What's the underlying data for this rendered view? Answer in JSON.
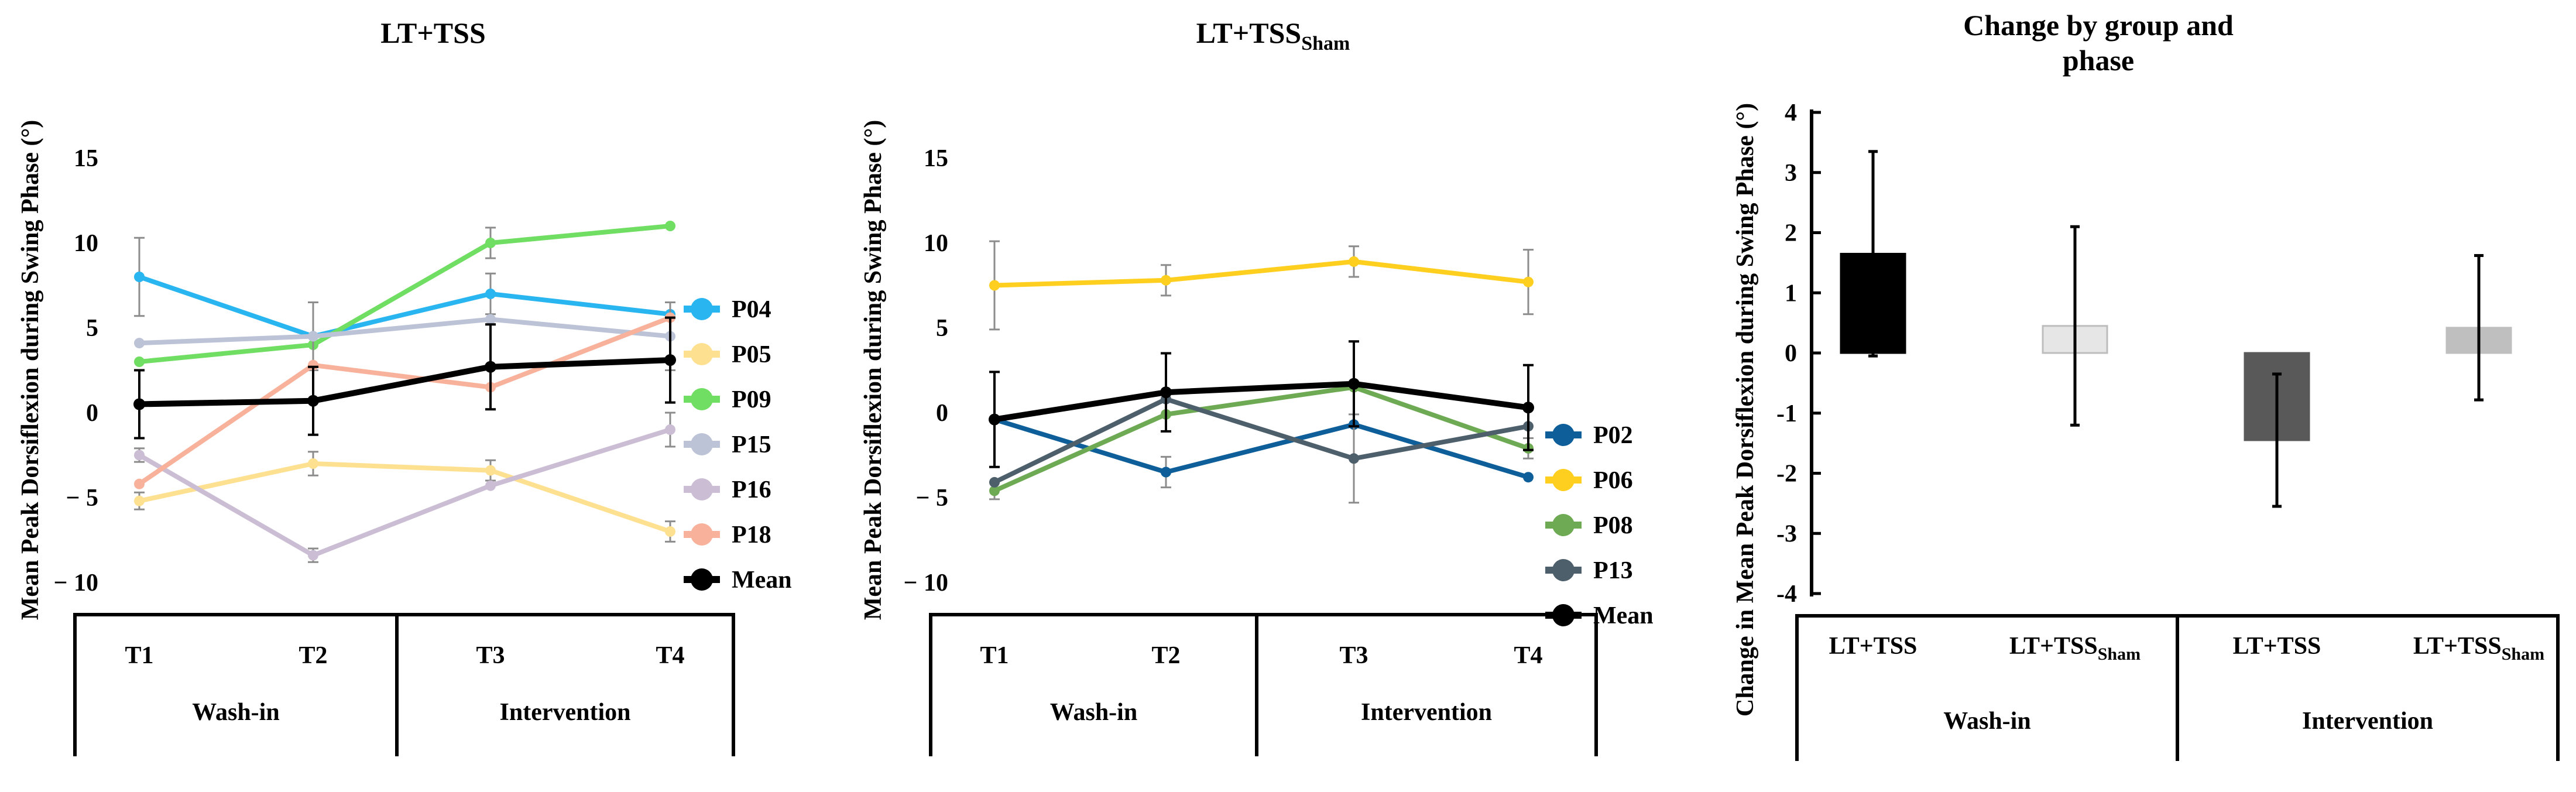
{
  "chart_data": [
    {
      "type": "line",
      "title_main": "LT+TSS",
      "title_sub": "",
      "ylabel": "Mean Peak Dorsiflexion during Swing Phase (°)",
      "ylim": [
        -10,
        15
      ],
      "yticks": [
        "15",
        "10",
        "5",
        "0",
        "− 5",
        "− 10"
      ],
      "ytick_values": [
        15,
        10,
        5,
        0,
        -5,
        -10
      ],
      "categories": [
        "T1",
        "T2",
        "T3",
        "T4"
      ],
      "phases": [
        "Wash-in",
        "Intervention"
      ],
      "series": [
        {
          "name": "P04",
          "color": "#29B5F0",
          "values": [
            8.0,
            4.5,
            7.0,
            5.8
          ],
          "errors": [
            2.3,
            null,
            1.2,
            null
          ]
        },
        {
          "name": "P05",
          "color": "#FDE090",
          "values": [
            -5.2,
            -3.0,
            -3.4,
            -7.0
          ],
          "errors": [
            0.5,
            0.7,
            0.6,
            0.6
          ]
        },
        {
          "name": "P09",
          "color": "#70DE62",
          "values": [
            3.0,
            4.0,
            10.0,
            11.0
          ],
          "errors": [
            null,
            null,
            0.9,
            null
          ]
        },
        {
          "name": "P15",
          "color": "#BCC3D6",
          "values": [
            4.1,
            4.5,
            5.5,
            4.5
          ],
          "errors": [
            null,
            2.0,
            null,
            2.0
          ]
        },
        {
          "name": "P16",
          "color": "#CBBED4",
          "values": [
            -2.5,
            -8.4,
            -4.3,
            -1.0
          ],
          "errors": [
            0.4,
            0.4,
            null,
            1.0
          ]
        },
        {
          "name": "P18",
          "color": "#F8B19A",
          "values": [
            -4.2,
            2.8,
            1.5,
            5.6
          ],
          "errors": [
            null,
            null,
            null,
            null
          ]
        },
        {
          "name": "Mean",
          "color": "#000000",
          "values": [
            0.5,
            0.7,
            2.7,
            3.1
          ],
          "errors": [
            2.0,
            2.0,
            2.5,
            2.5
          ],
          "bold": true
        }
      ]
    },
    {
      "type": "line",
      "title_main": "LT+TSS",
      "title_sub": "Sham",
      "ylabel": "Mean Peak Dorsiflexion during Swing Phase (°)",
      "ylim": [
        -10,
        15
      ],
      "yticks": [
        "15",
        "10",
        "5",
        "0",
        "− 5",
        "− 10"
      ],
      "ytick_values": [
        15,
        10,
        5,
        0,
        -5,
        -10
      ],
      "categories": [
        "T1",
        "T2",
        "T3",
        "T4"
      ],
      "phases": [
        "Wash-in",
        "Intervention"
      ],
      "series": [
        {
          "name": "P02",
          "color": "#0E5E99",
          "values": [
            -0.4,
            -3.5,
            -0.7,
            -3.8
          ],
          "errors": [
            null,
            0.9,
            null,
            null
          ]
        },
        {
          "name": "P06",
          "color": "#FFCF1F",
          "values": [
            7.5,
            7.8,
            8.9,
            7.7
          ],
          "errors": [
            2.6,
            0.9,
            0.9,
            1.9
          ]
        },
        {
          "name": "P08",
          "color": "#6EAA53",
          "values": [
            -4.6,
            -0.1,
            1.5,
            -2.1
          ],
          "errors": [
            0.5,
            null,
            null,
            0.6
          ]
        },
        {
          "name": "P13",
          "color": "#4E5F6C",
          "values": [
            -4.1,
            0.8,
            -2.7,
            -0.8
          ],
          "errors": [
            null,
            null,
            2.6,
            null
          ]
        },
        {
          "name": "Mean",
          "color": "#000000",
          "values": [
            -0.4,
            1.2,
            1.7,
            0.3
          ],
          "errors": [
            2.8,
            2.3,
            2.5,
            2.5
          ],
          "bold": true
        }
      ]
    },
    {
      "type": "bar",
      "title_lines": [
        "Change by group and",
        "phase"
      ],
      "ylabel": "Change in Mean Peak Dorsiflexion during Swing Phase (°)",
      "ylim": [
        -4,
        4
      ],
      "yticks": [
        "4",
        "3",
        "2",
        "1",
        "0",
        "-1",
        "-2",
        "-3",
        "-4"
      ],
      "ytick_values": [
        4,
        3,
        2,
        1,
        0,
        -1,
        -2,
        -3,
        -4
      ],
      "categories": [
        {
          "main": "LT+TSS",
          "sub": ""
        },
        {
          "main": "LT+TSS",
          "sub": "Sham"
        },
        {
          "main": "LT+TSS",
          "sub": ""
        },
        {
          "main": "LT+TSS",
          "sub": "Sham"
        }
      ],
      "phases": [
        "Wash-in",
        "Intervention"
      ],
      "values": [
        1.65,
        0.45,
        -1.45,
        0.42
      ],
      "errors": [
        1.7,
        1.65,
        1.1,
        1.2
      ],
      "colors": [
        "#000000",
        "#E6E6E6",
        "#595959",
        "#BFBFBF"
      ]
    }
  ]
}
